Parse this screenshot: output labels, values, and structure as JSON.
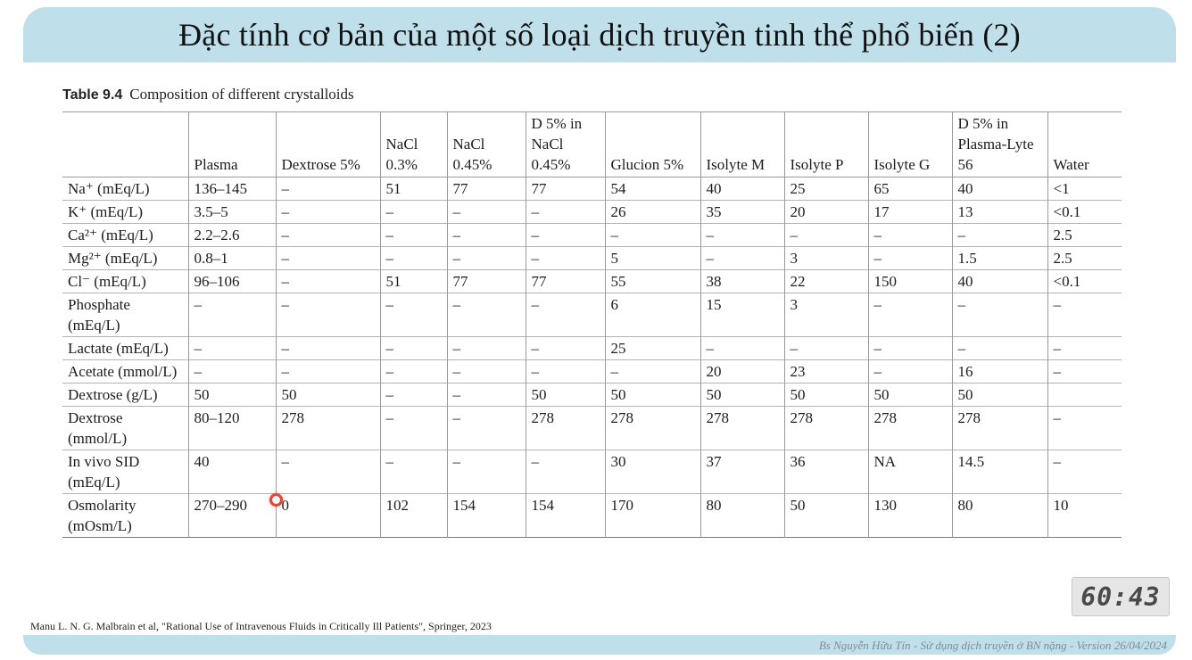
{
  "slide": {
    "title": "Đặc tính cơ bản của một số loại dịch truyền tinh thể phổ biến (2)",
    "caption_label": "Table 9.4",
    "caption_text": "Composition of different crystalloids",
    "source": "Manu L. N. G. Malbrain et al, \"Rational Use of Intravenous Fluids in Critically Ill Patients\", Springer, 2023",
    "footer": "Bs Nguyễn Hữu Tín - Sử dụng dịch truyền ở BN nặng - Version 26/04/2024",
    "timer": "60:43"
  },
  "table": {
    "headers": [
      "",
      "Plasma",
      "Dextrose 5%",
      "NaCl 0.3%",
      "NaCl 0.45%",
      "D 5% in NaCl 0.45%",
      "Glucion 5%",
      "Isolyte M",
      "Isolyte P",
      "Isolyte G",
      "D 5% in Plasma-Lyte 56",
      "Water"
    ],
    "rows": [
      [
        "Na⁺ (mEq/L)",
        "136–145",
        "–",
        "51",
        "77",
        "77",
        "54",
        "40",
        "25",
        "65",
        "40",
        "<1"
      ],
      [
        "K⁺ (mEq/L)",
        "3.5–5",
        "–",
        "–",
        "–",
        "–",
        "26",
        "35",
        "20",
        "17",
        "13",
        "<0.1"
      ],
      [
        "Ca²⁺ (mEq/L)",
        "2.2–2.6",
        "–",
        "–",
        "–",
        "–",
        "–",
        "–",
        "–",
        "–",
        "–",
        "2.5"
      ],
      [
        "Mg²⁺ (mEq/L)",
        "0.8–1",
        "–",
        "–",
        "–",
        "–",
        "5",
        "–",
        "3",
        "–",
        "1.5",
        "2.5"
      ],
      [
        "Cl⁻ (mEq/L)",
        "96–106",
        "–",
        "51",
        "77",
        "77",
        "55",
        "38",
        "22",
        "150",
        "40",
        "<0.1"
      ],
      [
        "Phosphate (mEq/L)",
        "–",
        "–",
        "–",
        "–",
        "–",
        "6",
        "15",
        "3",
        "–",
        "–",
        "–"
      ],
      [
        "Lactate (mEq/L)",
        "–",
        "–",
        "–",
        "–",
        "–",
        "25",
        "–",
        "–",
        "–",
        "–",
        "–"
      ],
      [
        "Acetate (mmol/L)",
        "–",
        "–",
        "–",
        "–",
        "–",
        "–",
        "20",
        "23",
        "–",
        "16",
        "–"
      ],
      [
        "Dextrose (g/L)",
        "50",
        "50",
        "–",
        "–",
        "50",
        "50",
        "50",
        "50",
        "50",
        "50",
        ""
      ],
      [
        "Dextrose (mmol/L)",
        "80–120",
        "278",
        "–",
        "–",
        "278",
        "278",
        "278",
        "278",
        "278",
        "278",
        "–"
      ],
      [
        "In vivo SID (mEq/L)",
        "40",
        "–",
        "–",
        "–",
        "–",
        "30",
        "37",
        "36",
        "NA",
        "14.5",
        "–"
      ],
      [
        "Osmolarity (mOsm/L)",
        "270–290",
        "0",
        "102",
        "154",
        "154",
        "170",
        "80",
        "50",
        "130",
        "80",
        "10"
      ]
    ]
  },
  "colors": {
    "banner": "#bfe0ea",
    "cursor_ring": "#d94a3a"
  }
}
